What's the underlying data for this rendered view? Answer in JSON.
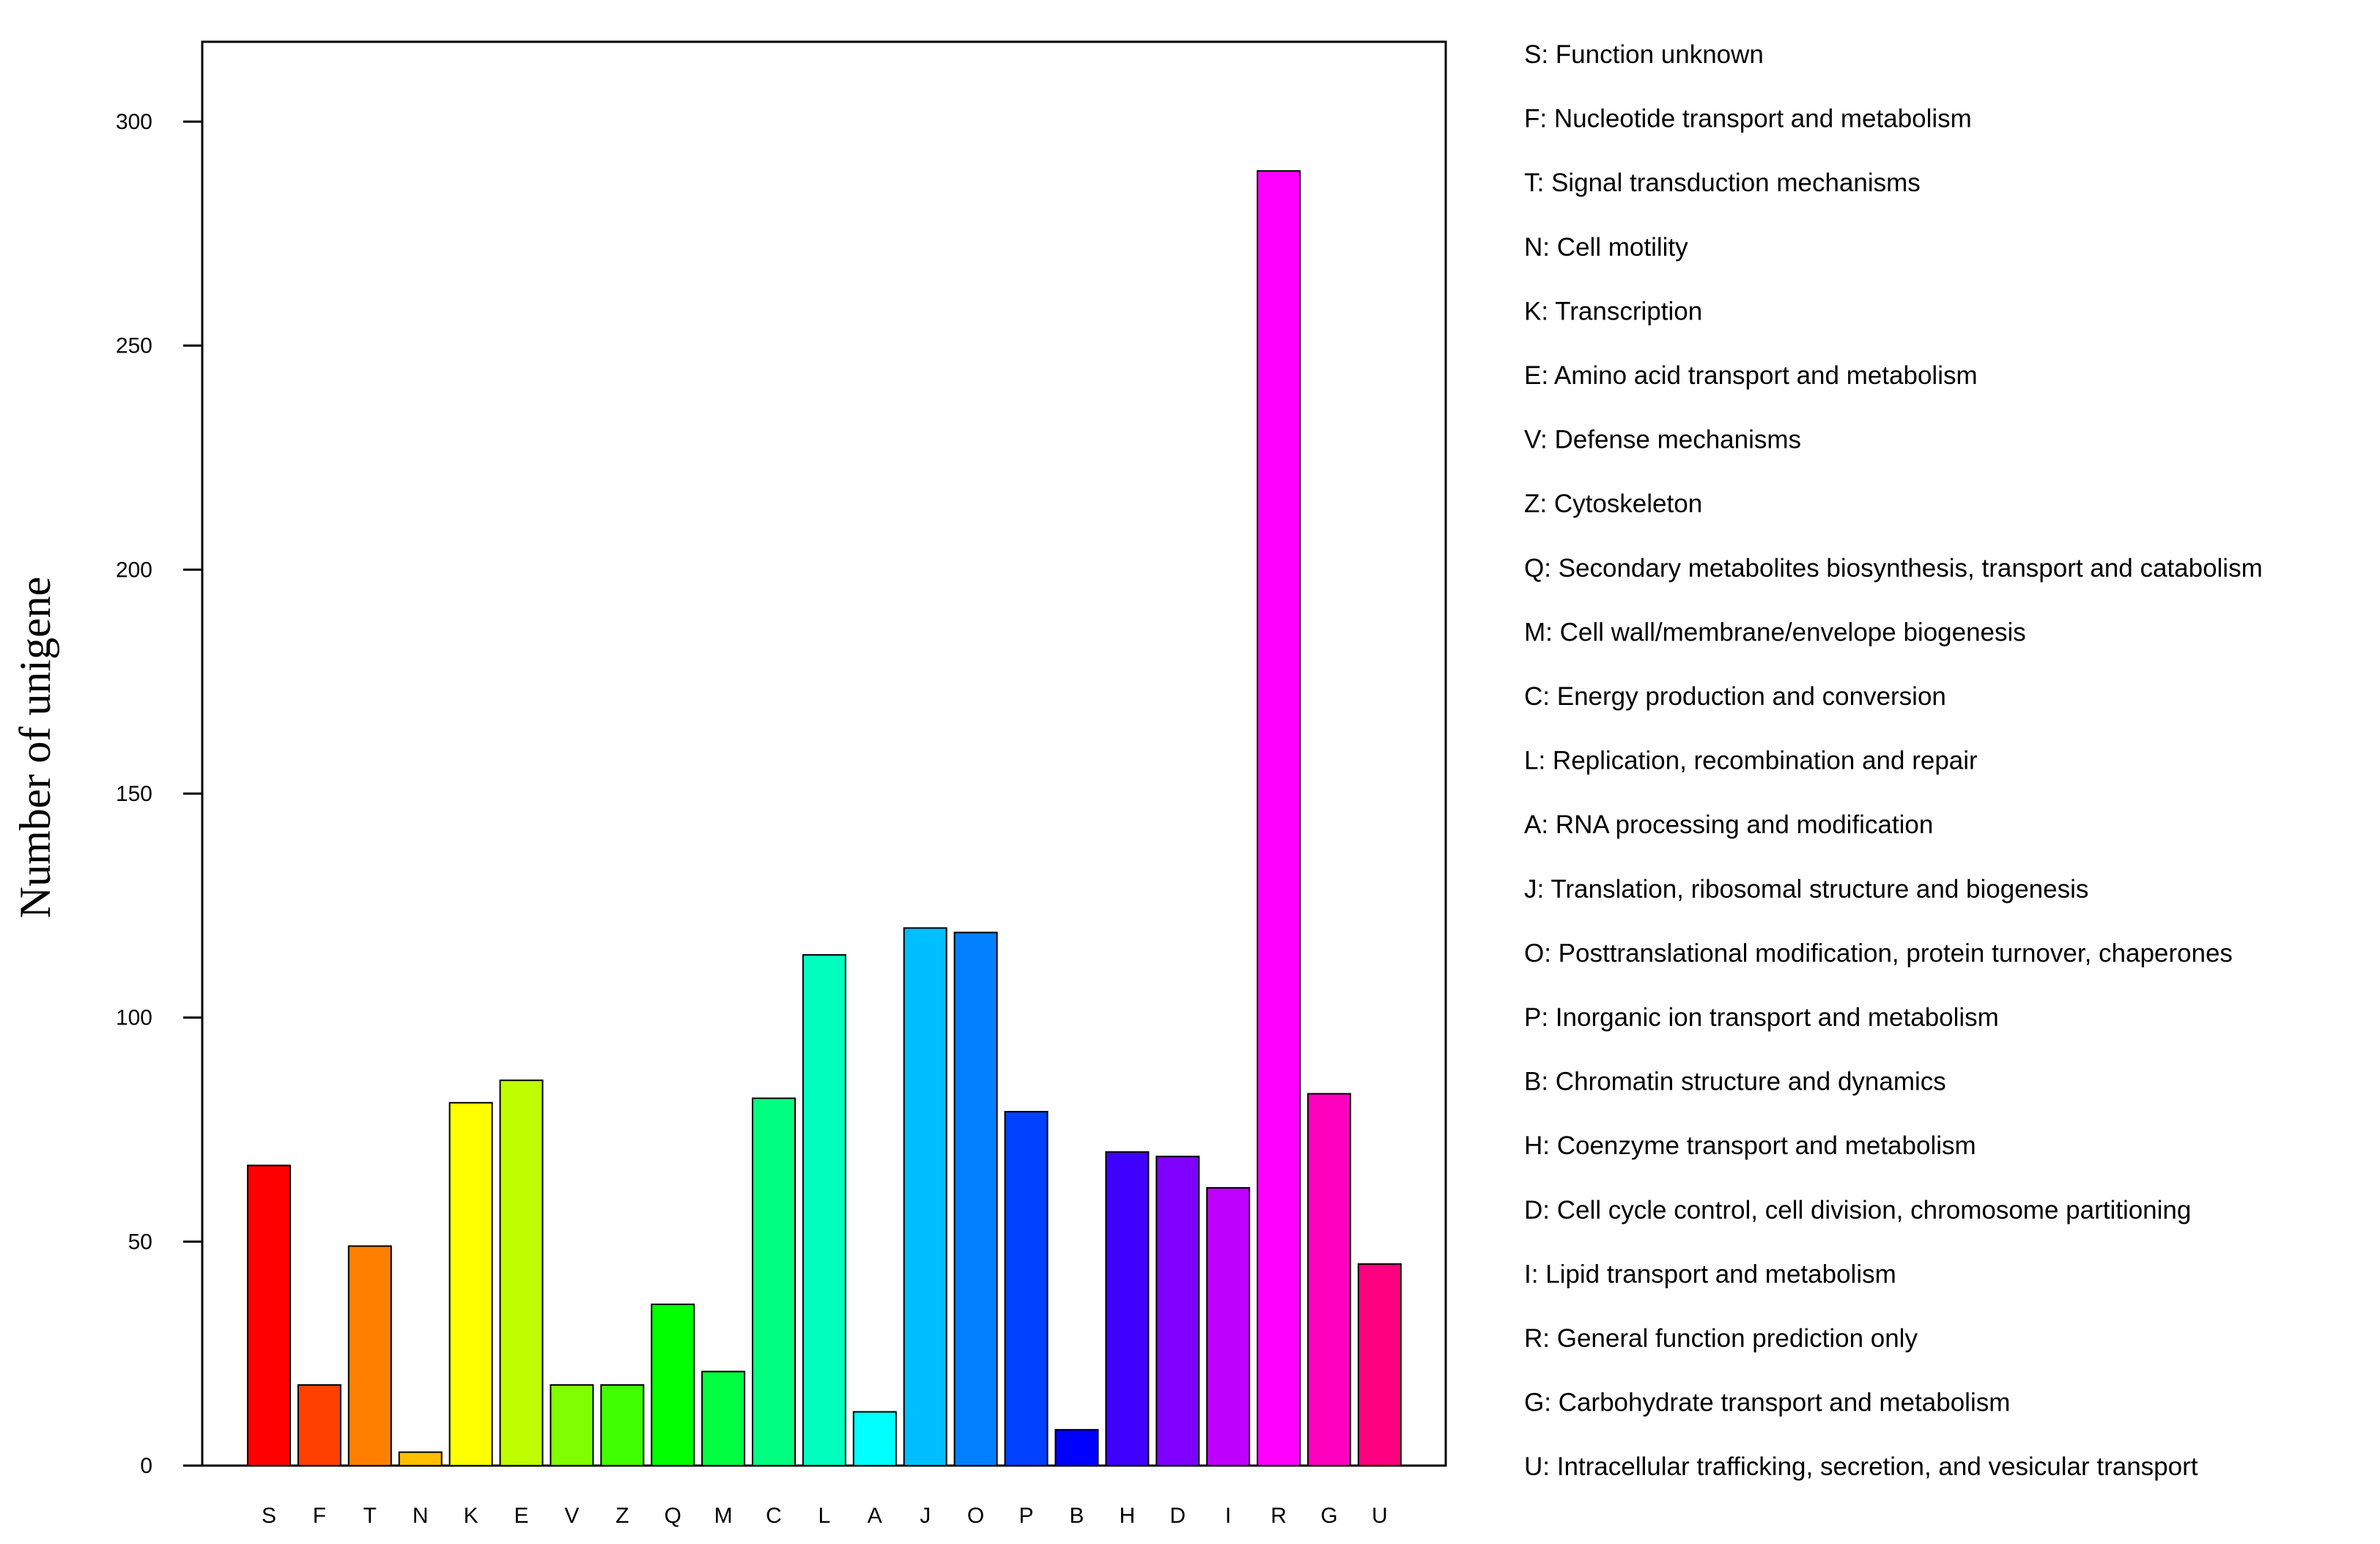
{
  "chart_data": {
    "type": "bar",
    "title": "",
    "xlabel": "",
    "ylabel": "Number of unigene",
    "ylim": [
      0,
      318
    ],
    "yticks": [
      0,
      50,
      100,
      150,
      200,
      250,
      300
    ],
    "grid": false,
    "legend_position": "right",
    "categories": [
      "S",
      "F",
      "T",
      "N",
      "K",
      "E",
      "V",
      "Z",
      "Q",
      "M",
      "C",
      "L",
      "A",
      "J",
      "O",
      "P",
      "B",
      "H",
      "D",
      "I",
      "R",
      "G",
      "U"
    ],
    "values": [
      67,
      18,
      49,
      3,
      81,
      86,
      18,
      18,
      36,
      21,
      82,
      114,
      12,
      120,
      119,
      79,
      8,
      70,
      69,
      62,
      289,
      83,
      45
    ],
    "colors": [
      "#ff0000",
      "#ff4000",
      "#ff8000",
      "#ffbf00",
      "#ffff00",
      "#bfff00",
      "#80ff00",
      "#40ff00",
      "#00ff00",
      "#00ff40",
      "#00ff80",
      "#00ffbf",
      "#00ffff",
      "#00bfff",
      "#0080ff",
      "#0040ff",
      "#0000ff",
      "#4000ff",
      "#8000ff",
      "#bf00ff",
      "#ff00ff",
      "#ff00bf",
      "#ff0080"
    ],
    "legend": [
      "S: Function unknown",
      "F: Nucleotide transport and metabolism",
      "T: Signal transduction mechanisms",
      "N: Cell motility",
      "K: Transcription",
      "E: Amino acid transport and metabolism",
      "V: Defense mechanisms",
      "Z: Cytoskeleton",
      "Q: Secondary metabolites biosynthesis, transport and catabolism",
      "M: Cell wall/membrane/envelope biogenesis",
      "C: Energy production and conversion",
      "L: Replication, recombination and repair",
      "A: RNA processing and modification",
      "J: Translation, ribosomal structure and biogenesis",
      "O: Posttranslational modification, protein turnover, chaperones",
      "P: Inorganic ion transport and metabolism",
      "B: Chromatin structure and dynamics",
      "H: Coenzyme transport and metabolism",
      "D: Cell cycle control, cell division, chromosome partitioning",
      "I: Lipid transport and metabolism",
      "R: General function prediction only",
      "G: Carbohydrate transport and metabolism",
      "U: Intracellular trafficking, secretion, and vesicular transport"
    ]
  }
}
